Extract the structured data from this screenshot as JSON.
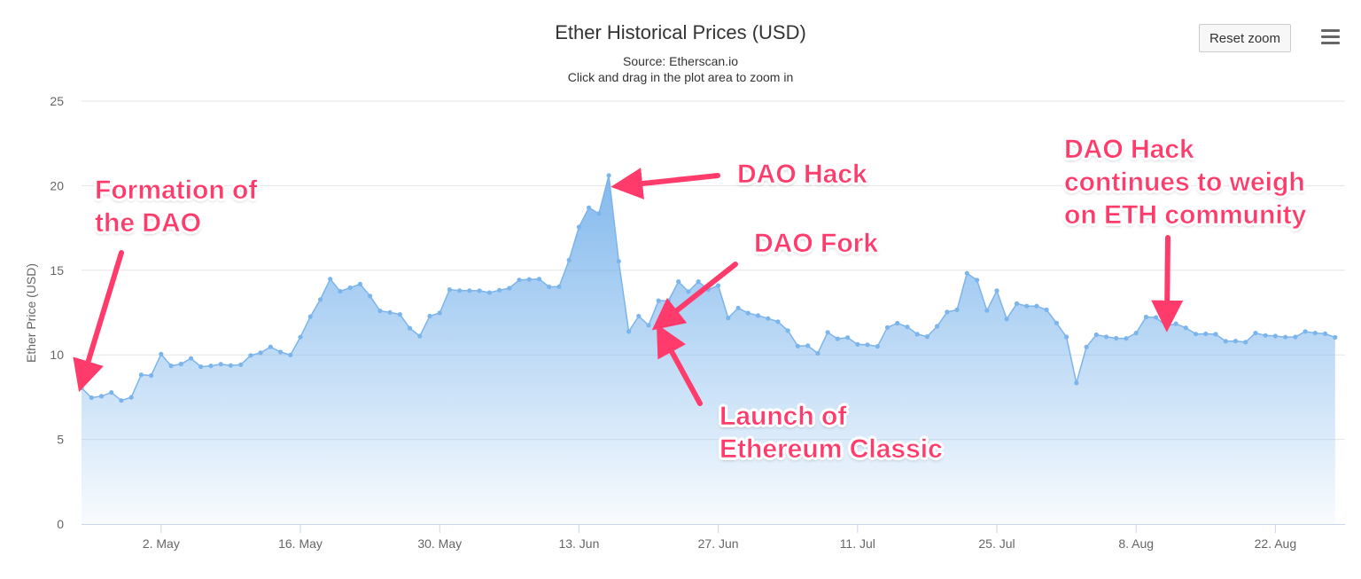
{
  "title": "Ether Historical Prices (USD)",
  "subtitle_line1": "Source: Etherscan.io",
  "subtitle_line2": "Click and drag in the plot area to zoom in",
  "reset_zoom_label": "Reset zoom",
  "menu_icon": "hamburger-menu-icon",
  "colors": {
    "series": "#7cb5ec",
    "annotation": "#ff3b6b",
    "grid": "#e6e6e6"
  },
  "annotations": {
    "formation": [
      "Formation of",
      "the DAO"
    ],
    "dao_hack": [
      "DAO Hack"
    ],
    "dao_fork": [
      "DAO Fork"
    ],
    "launch_etc": [
      "Launch of",
      "Ethereum Classic"
    ],
    "hack_continues": [
      "DAO Hack",
      "continues to weigh",
      "on ETH community"
    ]
  },
  "chart_data": {
    "type": "area",
    "title": "Ether Historical Prices (USD)",
    "subtitle": "Source: Etherscan.io",
    "xlabel": "",
    "ylabel": "Ether Price (USD)",
    "ylim": [
      0,
      25
    ],
    "yticks": [
      0,
      5,
      10,
      15,
      20,
      25
    ],
    "xlim": [
      "2016-04-24",
      "2016-08-29"
    ],
    "xticks": [
      {
        "date": "2016-05-02",
        "label": "2. May"
      },
      {
        "date": "2016-05-16",
        "label": "16. May"
      },
      {
        "date": "2016-05-30",
        "label": "30. May"
      },
      {
        "date": "2016-06-13",
        "label": "13. Jun"
      },
      {
        "date": "2016-06-27",
        "label": "27. Jun"
      },
      {
        "date": "2016-07-11",
        "label": "11. Jul"
      },
      {
        "date": "2016-07-25",
        "label": "25. Jul"
      },
      {
        "date": "2016-08-08",
        "label": "8. Aug"
      },
      {
        "date": "2016-08-22",
        "label": "22. Aug"
      }
    ],
    "grid": true,
    "legend": "none",
    "series": [
      {
        "points": [
          [
            "2016-04-24",
            8.05
          ],
          [
            "2016-04-25",
            7.47
          ],
          [
            "2016-04-26",
            7.55
          ],
          [
            "2016-04-27",
            7.78
          ],
          [
            "2016-04-28",
            7.3
          ],
          [
            "2016-04-29",
            7.49
          ],
          [
            "2016-04-30",
            8.82
          ],
          [
            "2016-05-01",
            8.78
          ],
          [
            "2016-05-02",
            10.04
          ],
          [
            "2016-05-03",
            9.35
          ],
          [
            "2016-05-04",
            9.46
          ],
          [
            "2016-05-05",
            9.79
          ],
          [
            "2016-05-06",
            9.3
          ],
          [
            "2016-05-07",
            9.35
          ],
          [
            "2016-05-08",
            9.45
          ],
          [
            "2016-05-09",
            9.37
          ],
          [
            "2016-05-10",
            9.42
          ],
          [
            "2016-05-11",
            9.97
          ],
          [
            "2016-05-12",
            10.12
          ],
          [
            "2016-05-13",
            10.47
          ],
          [
            "2016-05-14",
            10.17
          ],
          [
            "2016-05-15",
            9.99
          ],
          [
            "2016-05-16",
            11.05
          ],
          [
            "2016-05-17",
            12.26
          ],
          [
            "2016-05-18",
            13.27
          ],
          [
            "2016-05-19",
            14.48
          ],
          [
            "2016-05-20",
            13.76
          ],
          [
            "2016-05-21",
            13.97
          ],
          [
            "2016-05-22",
            14.18
          ],
          [
            "2016-05-23",
            13.48
          ],
          [
            "2016-05-24",
            12.6
          ],
          [
            "2016-05-25",
            12.51
          ],
          [
            "2016-05-26",
            12.39
          ],
          [
            "2016-05-27",
            11.58
          ],
          [
            "2016-05-28",
            11.11
          ],
          [
            "2016-05-29",
            12.29
          ],
          [
            "2016-05-30",
            12.48
          ],
          [
            "2016-05-31",
            13.86
          ],
          [
            "2016-06-01",
            13.8
          ],
          [
            "2016-06-02",
            13.8
          ],
          [
            "2016-06-03",
            13.79
          ],
          [
            "2016-06-04",
            13.68
          ],
          [
            "2016-06-05",
            13.82
          ],
          [
            "2016-06-06",
            13.94
          ],
          [
            "2016-06-07",
            14.43
          ],
          [
            "2016-06-08",
            14.46
          ],
          [
            "2016-06-09",
            14.48
          ],
          [
            "2016-06-10",
            14.02
          ],
          [
            "2016-06-11",
            14.03
          ],
          [
            "2016-06-12",
            15.6
          ],
          [
            "2016-06-13",
            17.56
          ],
          [
            "2016-06-14",
            18.7
          ],
          [
            "2016-06-15",
            18.35
          ],
          [
            "2016-06-16",
            20.61
          ],
          [
            "2016-06-17",
            15.53
          ],
          [
            "2016-06-18",
            11.38
          ],
          [
            "2016-06-19",
            12.29
          ],
          [
            "2016-06-20",
            11.75
          ],
          [
            "2016-06-21",
            13.2
          ],
          [
            "2016-06-22",
            13.21
          ],
          [
            "2016-06-23",
            14.33
          ],
          [
            "2016-06-24",
            13.74
          ],
          [
            "2016-06-25",
            14.33
          ],
          [
            "2016-06-26",
            13.86
          ],
          [
            "2016-06-27",
            14.1
          ],
          [
            "2016-06-28",
            12.18
          ],
          [
            "2016-06-29",
            12.77
          ],
          [
            "2016-06-30",
            12.47
          ],
          [
            "2016-07-01",
            12.32
          ],
          [
            "2016-07-02",
            12.15
          ],
          [
            "2016-07-03",
            11.96
          ],
          [
            "2016-07-04",
            11.43
          ],
          [
            "2016-07-05",
            10.52
          ],
          [
            "2016-07-06",
            10.54
          ],
          [
            "2016-07-07",
            10.09
          ],
          [
            "2016-07-08",
            11.33
          ],
          [
            "2016-07-09",
            10.95
          ],
          [
            "2016-07-10",
            11.02
          ],
          [
            "2016-07-11",
            10.62
          ],
          [
            "2016-07-12",
            10.6
          ],
          [
            "2016-07-13",
            10.5
          ],
          [
            "2016-07-14",
            11.62
          ],
          [
            "2016-07-15",
            11.87
          ],
          [
            "2016-07-16",
            11.65
          ],
          [
            "2016-07-17",
            11.22
          ],
          [
            "2016-07-18",
            11.08
          ],
          [
            "2016-07-19",
            11.69
          ],
          [
            "2016-07-20",
            12.53
          ],
          [
            "2016-07-21",
            12.66
          ],
          [
            "2016-07-22",
            14.82
          ],
          [
            "2016-07-23",
            14.42
          ],
          [
            "2016-07-24",
            12.62
          ],
          [
            "2016-07-25",
            13.79
          ],
          [
            "2016-07-26",
            12.12
          ],
          [
            "2016-07-27",
            13.03
          ],
          [
            "2016-07-28",
            12.88
          ],
          [
            "2016-07-29",
            12.88
          ],
          [
            "2016-07-30",
            12.66
          ],
          [
            "2016-07-31",
            11.88
          ],
          [
            "2016-08-01",
            11.06
          ],
          [
            "2016-08-02",
            8.34
          ],
          [
            "2016-08-03",
            10.46
          ],
          [
            "2016-08-04",
            11.19
          ],
          [
            "2016-08-05",
            11.07
          ],
          [
            "2016-08-06",
            10.98
          ],
          [
            "2016-08-07",
            10.97
          ],
          [
            "2016-08-08",
            11.29
          ],
          [
            "2016-08-09",
            12.24
          ],
          [
            "2016-08-10",
            12.21
          ],
          [
            "2016-08-11",
            11.71
          ],
          [
            "2016-08-12",
            11.84
          ],
          [
            "2016-08-13",
            11.6
          ],
          [
            "2016-08-14",
            11.23
          ],
          [
            "2016-08-15",
            11.24
          ],
          [
            "2016-08-16",
            11.22
          ],
          [
            "2016-08-17",
            10.8
          ],
          [
            "2016-08-18",
            10.82
          ],
          [
            "2016-08-19",
            10.75
          ],
          [
            "2016-08-20",
            11.29
          ],
          [
            "2016-08-21",
            11.15
          ],
          [
            "2016-08-22",
            11.11
          ],
          [
            "2016-08-23",
            11.05
          ],
          [
            "2016-08-24",
            11.06
          ],
          [
            "2016-08-25",
            11.38
          ],
          [
            "2016-08-26",
            11.29
          ],
          [
            "2016-08-27",
            11.25
          ],
          [
            "2016-08-28",
            11.03
          ]
        ]
      }
    ]
  }
}
